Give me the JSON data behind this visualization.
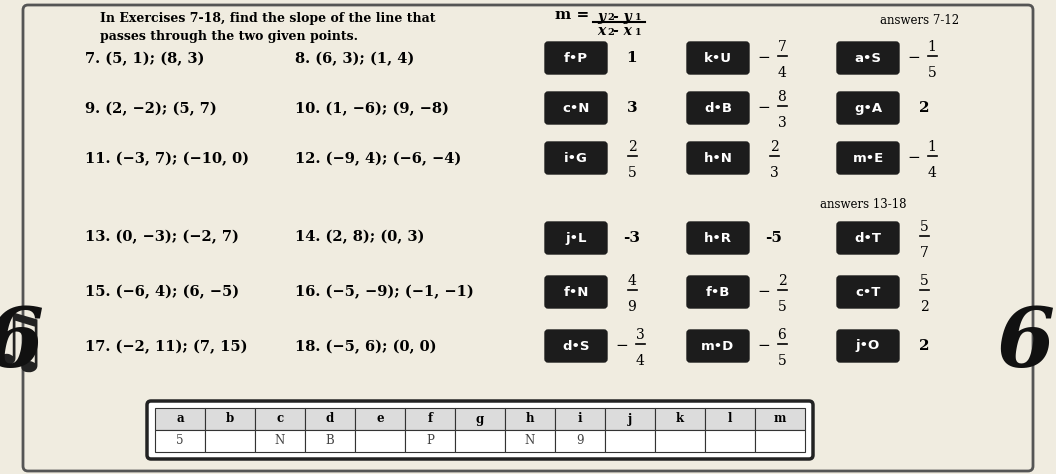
{
  "paper_color": "#f0ece0",
  "title1": "In Exercises 7-18, find the slope of the line that",
  "title2": "passes through the two given points.",
  "problems_left": [
    "7. (5, 1); (8, 3)",
    "9. (2, −2); (5, 7)",
    "11. (−3, 7); (−10, 0)"
  ],
  "problems_right": [
    "8. (6, 3); (1, 4)",
    "10. (1, −6); (9, −8)",
    "12. (−9, 4); (−6, −4)"
  ],
  "problems_left2": [
    "13. (0, −3); (−2, 7)",
    "15. (−6, 4); (6, −5)",
    "17. (−2, 11); (7, 15)"
  ],
  "problems_right2": [
    "14. (2, 8); (0, 3)",
    "16. (−5, −9); (−1, −1)",
    "18. (−5, 6); (0, 0)"
  ],
  "ans_label1": "answers 7-12",
  "ans_label2": "answers 13-18",
  "box_rows1": [
    [
      [
        "f•P",
        "1"
      ],
      [
        "k•U",
        "-7/4"
      ],
      [
        "a•S",
        "-1/5"
      ]
    ],
    [
      [
        "c•N",
        "3"
      ],
      [
        "d•B",
        "-8/3"
      ],
      [
        "g•A",
        "2"
      ]
    ],
    [
      [
        "i•G",
        "2/5"
      ],
      [
        "h•N",
        "2/3"
      ],
      [
        "m•E",
        "-1/4"
      ]
    ]
  ],
  "box_rows2": [
    [
      [
        "j•L",
        "-3"
      ],
      [
        "h•R",
        "-5"
      ],
      [
        "d•T",
        "5/7"
      ]
    ],
    [
      [
        "f•N",
        "4/9"
      ],
      [
        "f•B",
        "-2/5"
      ],
      [
        "c•T",
        "5/2"
      ]
    ],
    [
      [
        "d•S",
        "-3/4"
      ],
      [
        "m•D",
        "-6/5"
      ],
      [
        "j•O",
        "2"
      ]
    ]
  ],
  "bottom_letters": [
    "a",
    "b",
    "c",
    "d",
    "e",
    "f",
    "g",
    "h",
    "i",
    "j",
    "k",
    "l",
    "m"
  ],
  "bottom_values": [
    "5",
    "",
    "N",
    "B",
    "",
    "P",
    "",
    "N",
    "9",
    "",
    "",
    "",
    ""
  ]
}
